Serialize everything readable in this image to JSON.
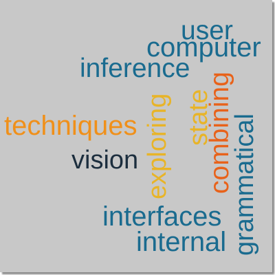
{
  "words": [
    {
      "id": "user",
      "text": "user",
      "color": "#1a6b8f"
    },
    {
      "id": "computer",
      "text": "computer",
      "color": "#1a6b8f"
    },
    {
      "id": "inference",
      "text": "inference",
      "color": "#1a6b8f"
    },
    {
      "id": "techniques",
      "text": "techniques",
      "color": "#f0901a"
    },
    {
      "id": "vision",
      "text": "vision",
      "color": "#1c2e3e"
    },
    {
      "id": "exploring",
      "text": "exploring",
      "color": "#e8b428"
    },
    {
      "id": "state",
      "text": "state",
      "color": "#e8b428"
    },
    {
      "id": "combining",
      "text": "combining",
      "color": "#e8621a"
    },
    {
      "id": "grammatical",
      "text": "grammatical",
      "color": "#1a6b8f"
    },
    {
      "id": "interfaces",
      "text": "interfaces",
      "color": "#1a6b8f"
    },
    {
      "id": "internal",
      "text": "internal",
      "color": "#1a6b8f"
    }
  ]
}
